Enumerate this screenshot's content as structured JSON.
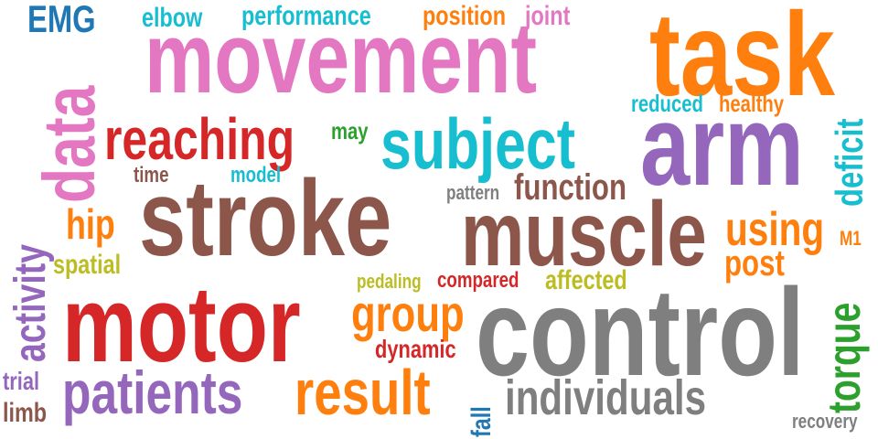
{
  "words": [
    {
      "key": "movement",
      "text": "movement",
      "color": "#e377c2"
    },
    {
      "key": "task",
      "text": "task",
      "color": "#ff7f0e"
    },
    {
      "key": "data",
      "text": "data",
      "color": "#e377c2"
    },
    {
      "key": "reaching",
      "text": "reaching",
      "color": "#d62728"
    },
    {
      "key": "subject",
      "text": "subject",
      "color": "#17becf"
    },
    {
      "key": "arm",
      "text": "arm",
      "color": "#9467bd"
    },
    {
      "key": "stroke",
      "text": "stroke",
      "color": "#8c564b"
    },
    {
      "key": "muscle",
      "text": "muscle",
      "color": "#8c564b"
    },
    {
      "key": "using",
      "text": "using",
      "color": "#ff7f0e"
    },
    {
      "key": "motor",
      "text": "motor",
      "color": "#d62728"
    },
    {
      "key": "control",
      "text": "control",
      "color": "#7f7f7f"
    },
    {
      "key": "patients",
      "text": "patients",
      "color": "#9467bd"
    },
    {
      "key": "result",
      "text": "result",
      "color": "#ff7f0e"
    },
    {
      "key": "individuals",
      "text": "individuals",
      "color": "#7f7f7f"
    },
    {
      "key": "group",
      "text": "group",
      "color": "#ff7f0e"
    },
    {
      "key": "function",
      "text": "function",
      "color": "#8c564b"
    },
    {
      "key": "EMG",
      "text": "EMG",
      "color": "#1f77b4"
    },
    {
      "key": "elbow",
      "text": "elbow",
      "color": "#17becf"
    },
    {
      "key": "performance",
      "text": "performance",
      "color": "#17becf"
    },
    {
      "key": "position",
      "text": "position",
      "color": "#ff7f0e"
    },
    {
      "key": "joint",
      "text": "joint",
      "color": "#e377c2"
    },
    {
      "key": "reduced",
      "text": "reduced",
      "color": "#17becf"
    },
    {
      "key": "healthy",
      "text": "healthy",
      "color": "#ff7f0e"
    },
    {
      "key": "may",
      "text": "may",
      "color": "#2ca02c"
    },
    {
      "key": "time",
      "text": "time",
      "color": "#8c564b"
    },
    {
      "key": "model",
      "text": "model",
      "color": "#17becf"
    },
    {
      "key": "pattern",
      "text": "pattern",
      "color": "#7f7f7f"
    },
    {
      "key": "hip",
      "text": "hip",
      "color": "#ff7f0e"
    },
    {
      "key": "spatial",
      "text": "spatial",
      "color": "#bcbd22"
    },
    {
      "key": "post",
      "text": "post",
      "color": "#ff7f0e"
    },
    {
      "key": "M1",
      "text": "M1",
      "color": "#ff7f0e"
    },
    {
      "key": "pedaling",
      "text": "pedaling",
      "color": "#bcbd22"
    },
    {
      "key": "compared",
      "text": "compared",
      "color": "#d62728"
    },
    {
      "key": "affected",
      "text": "affected",
      "color": "#bcbd22"
    },
    {
      "key": "dynamic",
      "text": "dynamic",
      "color": "#d62728"
    },
    {
      "key": "trial",
      "text": "trial",
      "color": "#9467bd"
    },
    {
      "key": "limb",
      "text": "limb",
      "color": "#8c564b"
    },
    {
      "key": "recovery",
      "text": "recovery",
      "color": "#7f7f7f"
    },
    {
      "key": "activity",
      "text": "activity",
      "color": "#9467bd"
    },
    {
      "key": "deficit",
      "text": "deficit",
      "color": "#17becf"
    },
    {
      "key": "torque",
      "text": "torque",
      "color": "#2ca02c"
    },
    {
      "key": "fall",
      "text": "fall",
      "color": "#1f77b4"
    }
  ]
}
